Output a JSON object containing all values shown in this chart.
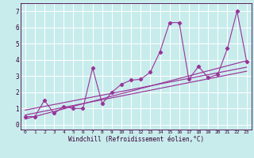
{
  "xlabel": "Windchill (Refroidissement éolien,°C)",
  "background_color": "#c8ecec",
  "grid_color": "#ffffff",
  "line_color": "#993399",
  "xlim": [
    -0.5,
    23.5
  ],
  "ylim": [
    -0.3,
    7.5
  ],
  "xticks": [
    0,
    1,
    2,
    3,
    4,
    5,
    6,
    7,
    8,
    9,
    10,
    11,
    12,
    13,
    14,
    15,
    16,
    17,
    18,
    19,
    20,
    21,
    22,
    23
  ],
  "yticks": [
    0,
    1,
    2,
    3,
    4,
    5,
    6,
    7
  ],
  "scatter_x": [
    0,
    1,
    2,
    3,
    4,
    5,
    6,
    7,
    8,
    9,
    10,
    11,
    12,
    13,
    14,
    15,
    16,
    17,
    18,
    19,
    20,
    21,
    22,
    23
  ],
  "scatter_y": [
    0.5,
    0.5,
    1.5,
    0.7,
    1.1,
    1.0,
    1.0,
    3.5,
    1.3,
    2.0,
    2.5,
    2.75,
    2.8,
    3.25,
    4.5,
    6.3,
    6.3,
    2.8,
    3.6,
    2.9,
    3.1,
    4.7,
    7.0,
    3.9
  ],
  "trend1_x": [
    0,
    23
  ],
  "trend1_y": [
    0.35,
    3.95
  ],
  "trend2_x": [
    0,
    23
  ],
  "trend2_y": [
    0.6,
    3.3
  ],
  "trend3_x": [
    0,
    23
  ],
  "trend3_y": [
    0.9,
    3.55
  ]
}
